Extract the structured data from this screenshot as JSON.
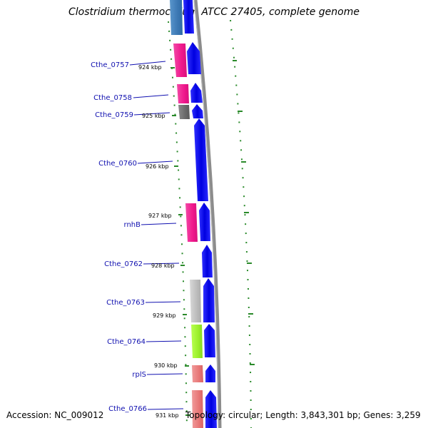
{
  "title": "Clostridium thermocellum ATCC 27405, complete genome",
  "footer": {
    "accession": "Accession: NC_009012",
    "topology": "Topology: circular; Length: 3,843,301 bp; Genes: 3,259"
  },
  "colors": {
    "forward_cds": "#0a0af0",
    "magenta_feature": "#f0188c",
    "gray_feature": "#6e6e6e",
    "lightgray_feature": "#c4c4c4",
    "green_feature": "#9cf02c",
    "pink_feature": "#e87878",
    "steelblue_feature": "#3c78b4",
    "backbone": "#8c8c8c",
    "dots": "#2a8a2a",
    "label_text": "#1010b0"
  },
  "gene_labels": [
    {
      "name": "Cthe_0757"
    },
    {
      "name": "Cthe_0758"
    },
    {
      "name": "Cthe_0759"
    },
    {
      "name": "Cthe_0760"
    },
    {
      "name": "rnhB"
    },
    {
      "name": "Cthe_0762"
    },
    {
      "name": "Cthe_0763"
    },
    {
      "name": "Cthe_0764"
    },
    {
      "name": "rplS"
    },
    {
      "name": "Cthe_0766"
    }
  ],
  "kbp_labels": [
    {
      "text": "924 kbp"
    },
    {
      "text": "925 kbp"
    },
    {
      "text": "926 kbp"
    },
    {
      "text": "927 kbp"
    },
    {
      "text": "928 kbp"
    },
    {
      "text": "929 kbp"
    },
    {
      "text": "930 kbp"
    },
    {
      "text": "931 kbp"
    }
  ]
}
